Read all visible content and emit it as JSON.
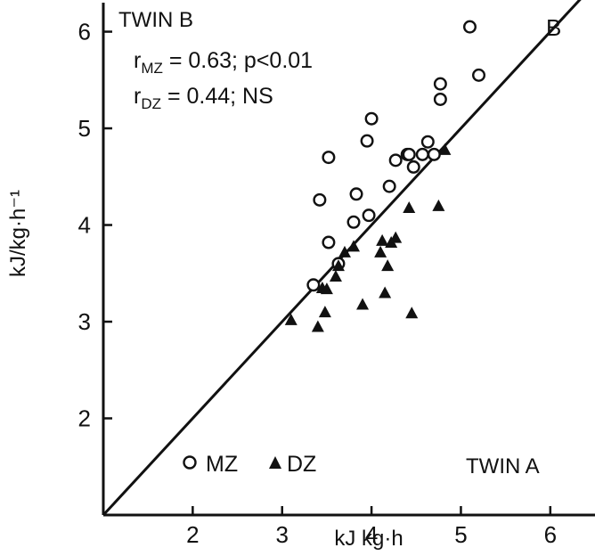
{
  "chart_data": {
    "type": "scatter",
    "title": "",
    "panel_label": "B",
    "xlabel": "kJ kg·h",
    "ylabel": "kJ/kg·h⁻¹",
    "corner_labels": {
      "y_axis": "TWIN B",
      "x_axis": "TWIN A"
    },
    "xlim": [
      1,
      6.5
    ],
    "ylim": [
      1,
      6.3
    ],
    "x_ticks": [
      2,
      3,
      4,
      5,
      6
    ],
    "x_tick_labels": [
      "2",
      "3",
      "4",
      "5",
      "6"
    ],
    "y_ticks": [
      2,
      3,
      4,
      5,
      6
    ],
    "y_tick_labels": [
      "2",
      "3",
      "4",
      "5",
      "6"
    ],
    "grid": false,
    "identity_line": {
      "from": [
        1,
        1
      ],
      "to": [
        6.5,
        6.5
      ]
    },
    "legend_position": "bottom-left",
    "annotations": [
      {
        "r": "r",
        "sub": "MZ",
        "text": " = 0.63;  p<0.01"
      },
      {
        "r": "r",
        "sub": "DZ",
        "text": " = 0.44;  NS"
      }
    ],
    "series": [
      {
        "name": "MZ",
        "marker": "open-circle",
        "points": [
          [
            3.35,
            3.38
          ],
          [
            3.42,
            4.26
          ],
          [
            3.52,
            3.82
          ],
          [
            3.52,
            4.7
          ],
          [
            3.63,
            3.6
          ],
          [
            3.8,
            4.03
          ],
          [
            3.83,
            4.32
          ],
          [
            3.95,
            4.87
          ],
          [
            3.97,
            4.1
          ],
          [
            4.0,
            5.1
          ],
          [
            4.2,
            4.4
          ],
          [
            4.27,
            4.67
          ],
          [
            4.4,
            4.73
          ],
          [
            4.42,
            4.73
          ],
          [
            4.47,
            4.6
          ],
          [
            4.57,
            4.73
          ],
          [
            4.63,
            4.86
          ],
          [
            4.7,
            4.73
          ],
          [
            4.77,
            5.3
          ],
          [
            4.77,
            5.46
          ],
          [
            5.1,
            6.05
          ],
          [
            5.2,
            5.55
          ]
        ]
      },
      {
        "name": "DZ",
        "marker": "filled-triangle",
        "points": [
          [
            3.1,
            3.02
          ],
          [
            3.4,
            2.95
          ],
          [
            3.45,
            3.35
          ],
          [
            3.48,
            3.1
          ],
          [
            3.5,
            3.34
          ],
          [
            3.6,
            3.47
          ],
          [
            3.63,
            3.58
          ],
          [
            3.7,
            3.72
          ],
          [
            3.8,
            3.78
          ],
          [
            3.9,
            3.18
          ],
          [
            4.1,
            3.72
          ],
          [
            4.12,
            3.84
          ],
          [
            4.15,
            3.3
          ],
          [
            4.18,
            3.58
          ],
          [
            4.22,
            3.82
          ],
          [
            4.27,
            3.87
          ],
          [
            4.42,
            4.18
          ],
          [
            4.45,
            3.09
          ],
          [
            4.75,
            4.2
          ],
          [
            4.82,
            4.78
          ]
        ]
      }
    ]
  }
}
